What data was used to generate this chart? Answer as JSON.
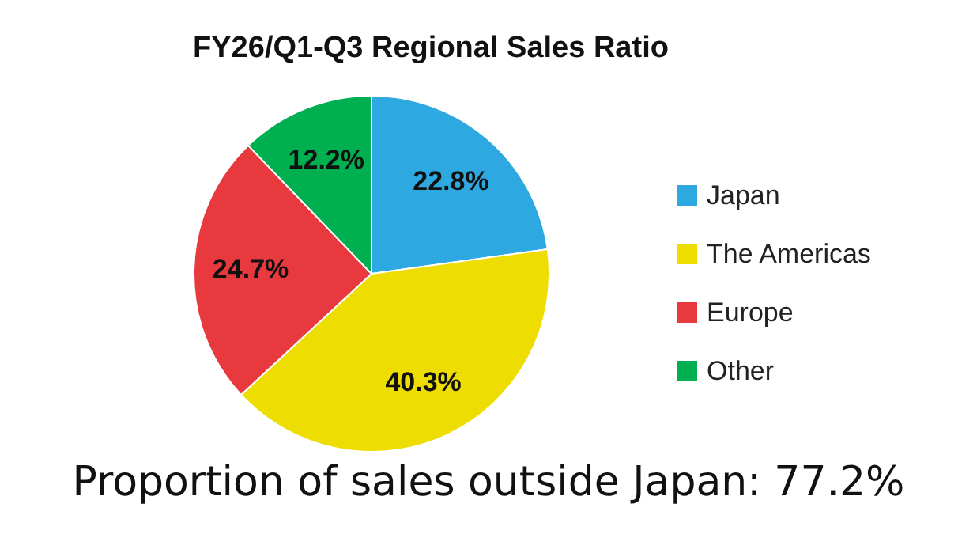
{
  "chart_data": {
    "type": "pie",
    "title": "FY26/Q1-Q3 Regional Sales Ratio",
    "categories": [
      "Japan",
      "The Americas",
      "Europe",
      "Other"
    ],
    "values": [
      22.8,
      40.3,
      24.7,
      12.2
    ],
    "colors": [
      "#2ea8e0",
      "#eedd00",
      "#e8393e",
      "#00b050"
    ],
    "value_labels": [
      "22.8%",
      "40.3%",
      "24.7%",
      "12.2%"
    ],
    "legend": "right",
    "annotations": [
      "Proportion of sales outside Japan: 77.2%"
    ]
  }
}
